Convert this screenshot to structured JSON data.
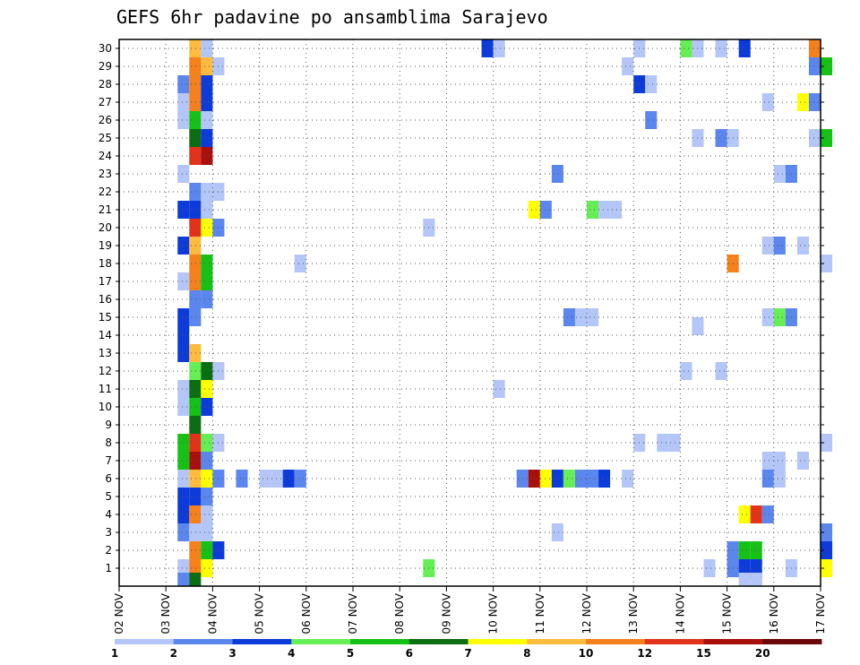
{
  "chart_data": {
    "type": "heatmap",
    "title": "GEFS 6hr padavine po ansamblima Sarajevo",
    "xlabel": "",
    "ylabel": "",
    "x_ticks": [
      "02 NOV",
      "03 NOV",
      "04 NOV",
      "05 NOV",
      "06 NOV",
      "07 NOV",
      "08 NOV",
      "09 NOV",
      "10 NOV",
      "11 NOV",
      "12 NOV",
      "13 NOV",
      "14 NOV",
      "15 NOV",
      "16 NOV",
      "17 NOV"
    ],
    "y_ticks": [
      1,
      2,
      3,
      4,
      5,
      6,
      7,
      8,
      9,
      10,
      11,
      12,
      13,
      14,
      15,
      16,
      17,
      18,
      19,
      20,
      21,
      22,
      23,
      24,
      25,
      26,
      27,
      28,
      29,
      30
    ],
    "xlim": [
      0,
      15
    ],
    "ylim": [
      0,
      30.5
    ],
    "step_days": 0.25,
    "legend": {
      "placement": "bottom",
      "ticks": [
        "1",
        "2",
        "3",
        "4",
        "5",
        "6",
        "7",
        "8",
        "10",
        "12",
        "15",
        "20"
      ],
      "colors": [
        "#b3c6f7",
        "#5b86ee",
        "#0d3bd9",
        "#66ee55",
        "#16c116",
        "#0b6e12",
        "#ffff00",
        "#ffbb3d",
        "#f5801c",
        "#e2331a",
        "#a8100e",
        "#6b0606"
      ]
    },
    "cells": [
      [
        1.5,
        30,
        7
      ],
      [
        1.75,
        30,
        0
      ],
      [
        7.75,
        30,
        2
      ],
      [
        8.0,
        30,
        0
      ],
      [
        11.0,
        30,
        0
      ],
      [
        12.0,
        30,
        3
      ],
      [
        12.25,
        30,
        0
      ],
      [
        12.75,
        30,
        0
      ],
      [
        13.25,
        30,
        2
      ],
      [
        14.75,
        30,
        8
      ],
      [
        1.5,
        29,
        8
      ],
      [
        1.75,
        29,
        7
      ],
      [
        2.0,
        29,
        0
      ],
      [
        10.75,
        29,
        0
      ],
      [
        14.75,
        29,
        1
      ],
      [
        15.0,
        29,
        4
      ],
      [
        1.25,
        28,
        1
      ],
      [
        1.5,
        28,
        8
      ],
      [
        1.75,
        28,
        2
      ],
      [
        11.0,
        28,
        2
      ],
      [
        11.25,
        28,
        0
      ],
      [
        1.25,
        27,
        0
      ],
      [
        1.5,
        27,
        8
      ],
      [
        1.75,
        27,
        2
      ],
      [
        13.75,
        27,
        0
      ],
      [
        14.5,
        27,
        6
      ],
      [
        14.75,
        27,
        1
      ],
      [
        1.25,
        26,
        0
      ],
      [
        1.5,
        26,
        4
      ],
      [
        1.75,
        26,
        0
      ],
      [
        11.25,
        26,
        1
      ],
      [
        1.5,
        25,
        5
      ],
      [
        1.75,
        25,
        2
      ],
      [
        12.25,
        25,
        0
      ],
      [
        12.75,
        25,
        1
      ],
      [
        13.0,
        25,
        0
      ],
      [
        14.75,
        25,
        0
      ],
      [
        15.0,
        25,
        4
      ],
      [
        1.5,
        24,
        9
      ],
      [
        1.75,
        24,
        10
      ],
      [
        1.25,
        23,
        0
      ],
      [
        9.25,
        23,
        1
      ],
      [
        14.0,
        23,
        0
      ],
      [
        14.25,
        23,
        1
      ],
      [
        1.5,
        22,
        1
      ],
      [
        1.75,
        22,
        0
      ],
      [
        2.0,
        22,
        0
      ],
      [
        1.25,
        21,
        2
      ],
      [
        1.5,
        21,
        2
      ],
      [
        1.75,
        21,
        0
      ],
      [
        8.75,
        21,
        6
      ],
      [
        9.0,
        21,
        1
      ],
      [
        10.0,
        21,
        3
      ],
      [
        10.25,
        21,
        0
      ],
      [
        10.5,
        21,
        0
      ],
      [
        1.5,
        20,
        9
      ],
      [
        1.75,
        20,
        6
      ],
      [
        2.0,
        20,
        1
      ],
      [
        6.5,
        20,
        0
      ],
      [
        1.25,
        19,
        2
      ],
      [
        1.5,
        19,
        7
      ],
      [
        13.75,
        19,
        0
      ],
      [
        14.0,
        19,
        1
      ],
      [
        14.5,
        19,
        0
      ],
      [
        1.5,
        18,
        8
      ],
      [
        1.75,
        18,
        4
      ],
      [
        3.75,
        18,
        0
      ],
      [
        13.0,
        18,
        8
      ],
      [
        15.0,
        18,
        0
      ],
      [
        1.25,
        17,
        0
      ],
      [
        1.5,
        17,
        8
      ],
      [
        1.75,
        17,
        4
      ],
      [
        1.5,
        16,
        1
      ],
      [
        1.75,
        16,
        1
      ],
      [
        1.25,
        15,
        2
      ],
      [
        1.5,
        15,
        1
      ],
      [
        9.5,
        15,
        1
      ],
      [
        9.75,
        15,
        0
      ],
      [
        10.0,
        15,
        0
      ],
      [
        13.75,
        15,
        0
      ],
      [
        14.0,
        15,
        3
      ],
      [
        14.25,
        15,
        1
      ],
      [
        12.25,
        14.5,
        0
      ],
      [
        1.25,
        14,
        2
      ],
      [
        1.25,
        13,
        2
      ],
      [
        1.5,
        13,
        7
      ],
      [
        1.5,
        12,
        3
      ],
      [
        1.75,
        12,
        5
      ],
      [
        2.0,
        12,
        0
      ],
      [
        12.0,
        12,
        0
      ],
      [
        12.75,
        12,
        0
      ],
      [
        1.25,
        11,
        0
      ],
      [
        1.5,
        11,
        5
      ],
      [
        1.75,
        11,
        6
      ],
      [
        8.0,
        11,
        0
      ],
      [
        1.25,
        10,
        0
      ],
      [
        1.5,
        10,
        4
      ],
      [
        1.75,
        10,
        2
      ],
      [
        1.5,
        9,
        5
      ],
      [
        1.25,
        8,
        4
      ],
      [
        1.5,
        8,
        9
      ],
      [
        1.75,
        8,
        3
      ],
      [
        2.0,
        8,
        0
      ],
      [
        11.0,
        8,
        0
      ],
      [
        11.5,
        8,
        0
      ],
      [
        11.75,
        8,
        0
      ],
      [
        15.0,
        8,
        0
      ],
      [
        1.25,
        7,
        4
      ],
      [
        1.5,
        7,
        10
      ],
      [
        1.75,
        7,
        1
      ],
      [
        13.75,
        7,
        0
      ],
      [
        14.0,
        7,
        0
      ],
      [
        14.5,
        7,
        0
      ],
      [
        1.25,
        6,
        0
      ],
      [
        1.5,
        6,
        7
      ],
      [
        1.75,
        6,
        6
      ],
      [
        2.0,
        6,
        1
      ],
      [
        2.5,
        6,
        1
      ],
      [
        3.0,
        6,
        0
      ],
      [
        3.25,
        6,
        0
      ],
      [
        3.5,
        6,
        2
      ],
      [
        3.75,
        6,
        1
      ],
      [
        8.5,
        6,
        1
      ],
      [
        8.75,
        6,
        10
      ],
      [
        9.0,
        6,
        6
      ],
      [
        9.25,
        6,
        2
      ],
      [
        9.5,
        6,
        3
      ],
      [
        9.75,
        6,
        1
      ],
      [
        10.0,
        6,
        1
      ],
      [
        10.25,
        6,
        2
      ],
      [
        10.75,
        6,
        0
      ],
      [
        13.75,
        6,
        1
      ],
      [
        14.0,
        6,
        0
      ],
      [
        1.25,
        5,
        2
      ],
      [
        1.5,
        5,
        2
      ],
      [
        1.75,
        5,
        1
      ],
      [
        1.25,
        4,
        2
      ],
      [
        1.5,
        4,
        8
      ],
      [
        1.75,
        4,
        0
      ],
      [
        13.25,
        4,
        6
      ],
      [
        13.5,
        4,
        9
      ],
      [
        13.75,
        4,
        1
      ],
      [
        1.25,
        3,
        1
      ],
      [
        1.5,
        3,
        0
      ],
      [
        1.75,
        3,
        0
      ],
      [
        9.25,
        3,
        0
      ],
      [
        15.0,
        3,
        1
      ],
      [
        1.5,
        2,
        8
      ],
      [
        1.75,
        2,
        4
      ],
      [
        2.0,
        2,
        2
      ],
      [
        13.0,
        2,
        1
      ],
      [
        13.25,
        2,
        4
      ],
      [
        13.5,
        2,
        4
      ],
      [
        15.0,
        2,
        2
      ],
      [
        1.25,
        1,
        0
      ],
      [
        1.5,
        1,
        8
      ],
      [
        1.75,
        1,
        6
      ],
      [
        6.5,
        1,
        3
      ],
      [
        12.5,
        1,
        0
      ],
      [
        13.0,
        1,
        1
      ],
      [
        13.25,
        1,
        2
      ],
      [
        13.5,
        1,
        2
      ],
      [
        14.25,
        1,
        0
      ],
      [
        15.0,
        1,
        6
      ],
      [
        1.25,
        0.25,
        1
      ],
      [
        1.5,
        0.25,
        5
      ],
      [
        13.25,
        0.25,
        0
      ],
      [
        13.5,
        0.25,
        0
      ]
    ]
  }
}
